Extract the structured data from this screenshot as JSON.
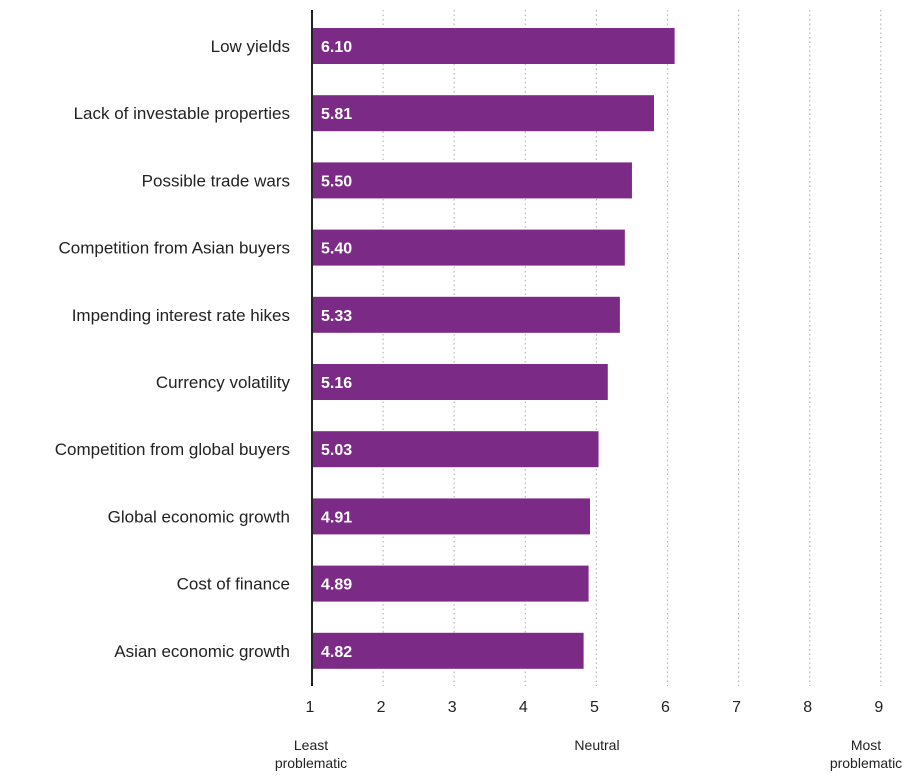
{
  "chart_data": {
    "type": "bar",
    "orientation": "horizontal",
    "categories": [
      "Low yields",
      "Lack of investable properties",
      "Possible trade wars",
      "Competition from Asian buyers",
      "Impending interest rate hikes",
      "Currency volatility",
      "Competition from global buyers",
      "Global economic growth",
      "Cost of finance",
      "Asian economic growth"
    ],
    "values": [
      6.1,
      5.81,
      5.5,
      5.4,
      5.33,
      5.16,
      5.03,
      4.91,
      4.89,
      4.82
    ],
    "value_labels": [
      "6.10",
      "5.81",
      "5.50",
      "5.40",
      "5.33",
      "5.16",
      "5.03",
      "4.91",
      "4.89",
      "4.82"
    ],
    "x_ticks": [
      "1",
      "2",
      "3",
      "4",
      "5",
      "6",
      "7",
      "8",
      "9"
    ],
    "xlim": [
      1,
      9
    ],
    "grid": "vertical dotted",
    "scale_labels": {
      "low": [
        "Least",
        "problematic"
      ],
      "mid": [
        "Neutral"
      ],
      "high": [
        "Most",
        "problematic"
      ]
    },
    "colors": {
      "bar": "#7b2a86",
      "value_text": "#ffffff",
      "grid": "#b8b8b8",
      "axis": "#222222",
      "text": "#222222"
    }
  }
}
